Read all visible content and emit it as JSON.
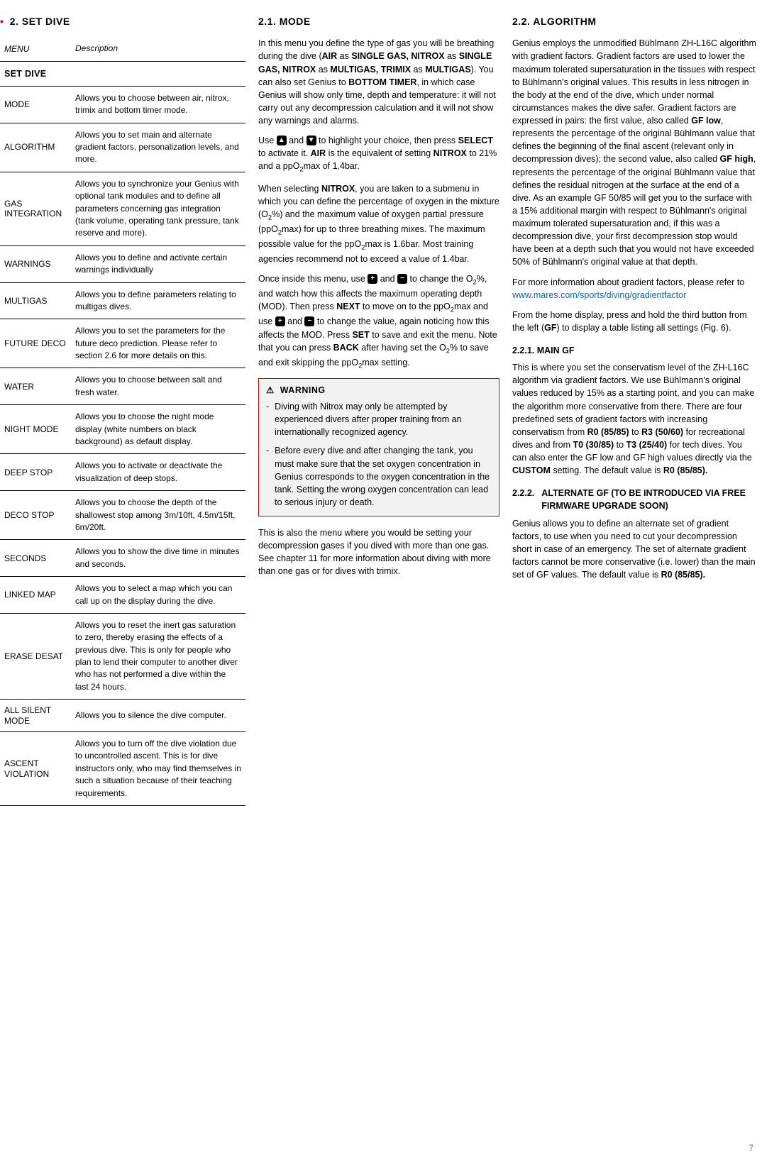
{
  "page_number": "7",
  "col1": {
    "heading": "2.   SET DIVE",
    "table_header": {
      "menu": "MENU",
      "desc": "Description"
    },
    "section_label": "SET DIVE",
    "rows": [
      {
        "name": "MODE",
        "desc": "Allows you to choose between air, nitrox, trimix and bottom timer mode."
      },
      {
        "name": "ALGORITHM",
        "desc": "Allows you to set main and alternate gradient factors, personalization levels, and more."
      },
      {
        "name": "GAS INTEGRATION",
        "desc": "Allows you to synchronize your Genius with optional tank modules and to define all parameters concerning gas integration (tank volume, operating tank pressure, tank reserve and more)."
      },
      {
        "name": "WARNINGS",
        "desc": "Allows you to define and activate certain warnings individually"
      },
      {
        "name": "MULTIGAS",
        "desc": "Allows you to define parameters relating to multigas dives."
      },
      {
        "name": "FUTURE DECO",
        "desc": "Allows you to set the parameters for the future deco prediction. Please refer to section 2.6 for more details on this."
      },
      {
        "name": "WATER",
        "desc": "Allows you to choose between salt and fresh water."
      },
      {
        "name": "NIGHT MODE",
        "desc": "Allows you to choose the night mode display (white numbers on black background) as default display."
      },
      {
        "name": "DEEP STOP",
        "desc": "Allows you to activate or deactivate the visualization of deep stops."
      },
      {
        "name": "DECO STOP",
        "desc": "Allows you to choose the depth of the shallowest stop among 3m/10ft, 4.5m/15ft, 6m/20ft."
      },
      {
        "name": "SECONDS",
        "desc": "Allows you to show the dive time in minutes and seconds."
      },
      {
        "name": "LINKED MAP",
        "desc": "Allows you to select a map which you can call up on the display during the dive."
      },
      {
        "name": "ERASE DESAT",
        "desc": "Allows you to reset the inert gas saturation to zero, thereby erasing the effects of a previous dive. This is only for people who plan to lend their computer to another diver who has not performed a dive within the last 24 hours."
      },
      {
        "name": "ALL SILENT MODE",
        "desc": "Allows you to silence the dive computer."
      },
      {
        "name": "ASCENT VIOLATION",
        "desc": "Allows you to turn off the dive violation due to uncontrolled ascent. This is for dive instructors only, who may find themselves in such a situation because of their teaching requirements."
      }
    ]
  },
  "col2": {
    "heading": "2.1.   MODE",
    "warning_label": "WARNING",
    "warning_items": [
      "Diving with Nitrox may only be attempted by experienced divers after proper training from an internationally recognized agency.",
      "Before every dive and after changing the tank, you must make sure that the set oxygen concentration in Genius corresponds to the oxygen concentration in the tank. Setting the wrong oxygen concentration can lead to serious injury or death."
    ],
    "closing": "This is also the menu where you would be setting your decompression gases if you dived with more than one gas. See chapter 11 for more information about diving with more than one gas or for dives with trimix."
  },
  "col3": {
    "heading": "2.2.   ALGORITHM",
    "link_text": "www.mares.com/sports/diving/gradientfactor",
    "sub1_heading": "2.2.1.   MAIN GF",
    "sub2_heading": "2.2.2.   ALTERNATE GF (TO BE INTRODUCED VIA FREE FIRMWARE UPGRADE SOON)",
    "sub2_body": "Genius allows you to define an alternate set of gradient factors, to use when you need to cut your decompression short in case of an emergency. The set of alternate gradient factors cannot be more conservative (i.e. lower) than the main set of GF values. The default value is "
  }
}
